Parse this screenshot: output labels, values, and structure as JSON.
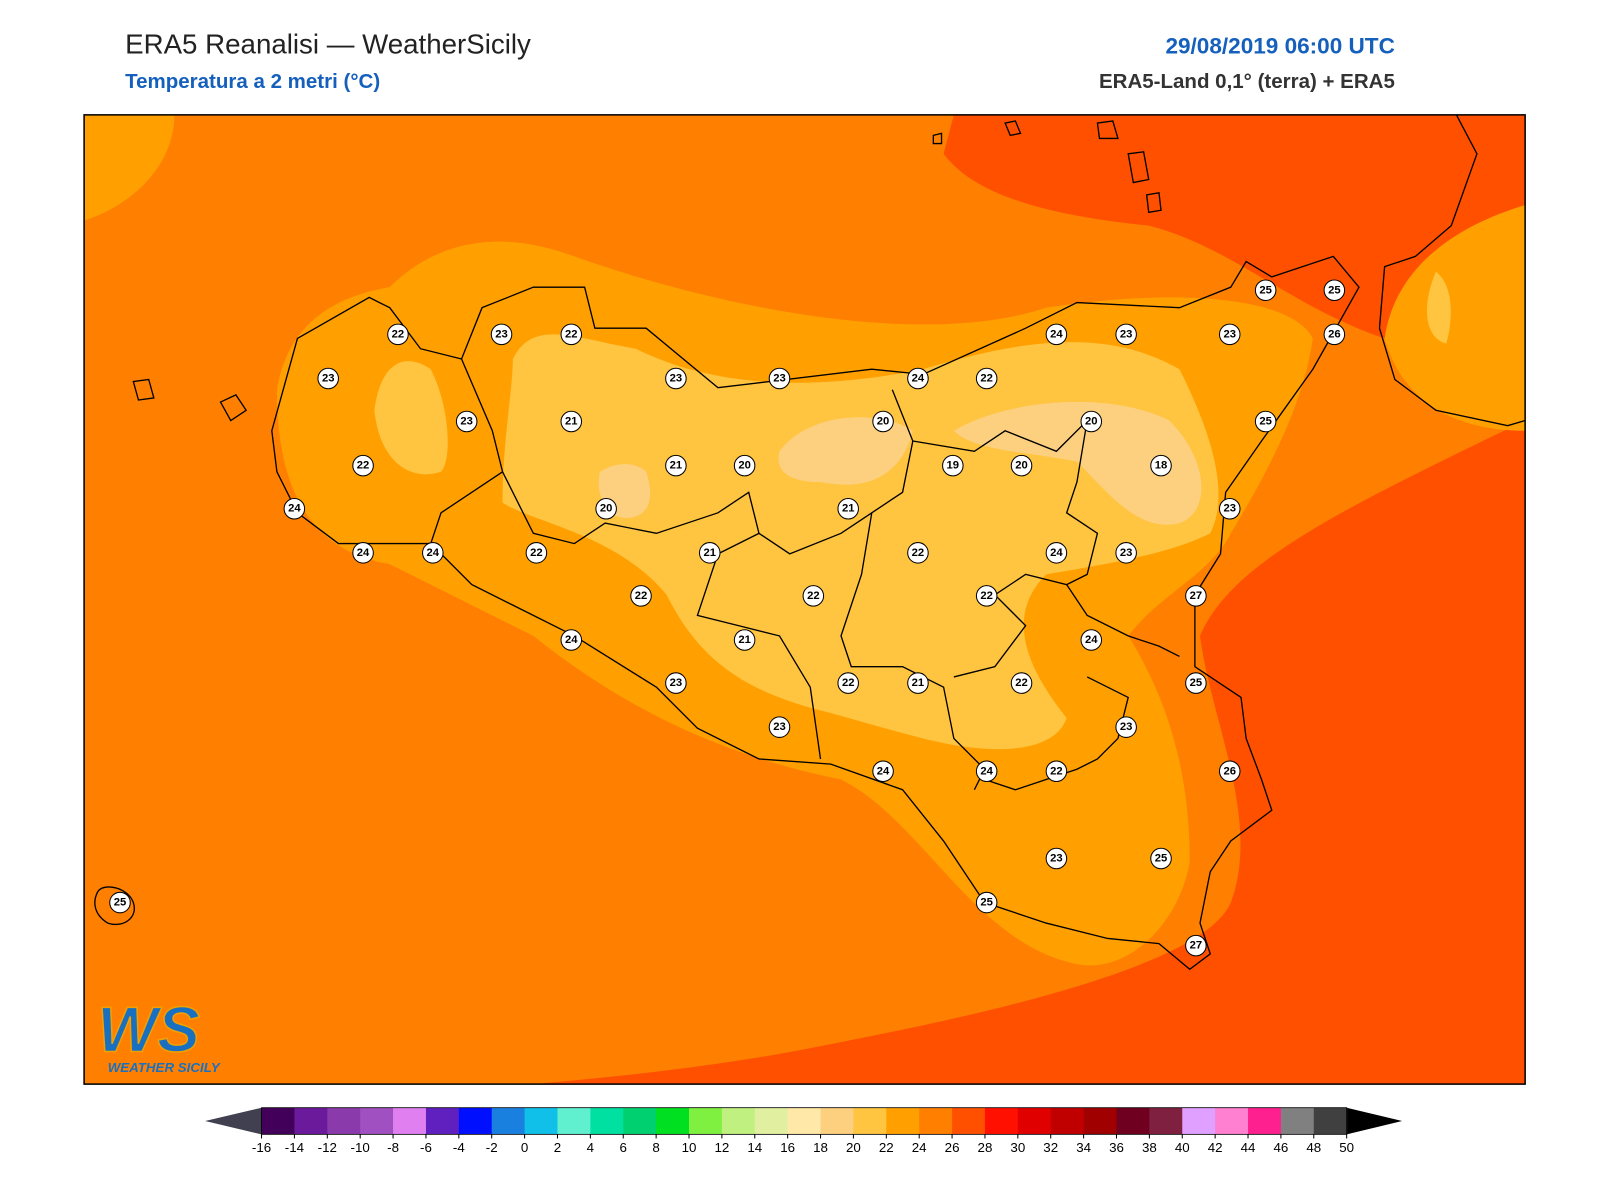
{
  "header": {
    "title": "ERA5 Reanalisi — WeatherSicily",
    "subtitle": "Temperatura a 2 metri (°C)",
    "date": "29/08/2019 06:00 UTC",
    "source": "ERA5-Land 0,1° (terra) + ERA5"
  },
  "logo": {
    "mark": "WS",
    "name": "WEATHER SICILY"
  },
  "stations": [
    22,
    23,
    22,
    23,
    23,
    21,
    22,
    24,
    20,
    21,
    20,
    23,
    23,
    24,
    22,
    20,
    19,
    20,
    20,
    18,
    24,
    23,
    23,
    25,
    25,
    26,
    25,
    23,
    23,
    24,
    27,
    21,
    22,
    22,
    24,
    24,
    22,
    21,
    22,
    22,
    24,
    21,
    24,
    23,
    22,
    21,
    22,
    25,
    23,
    23,
    24,
    24,
    22,
    26,
    23,
    25,
    25,
    27,
    25
  ],
  "colorbar": {
    "ticks": [
      -16,
      -14,
      -12,
      -10,
      -8,
      -6,
      -4,
      -2,
      0,
      2,
      4,
      6,
      8,
      10,
      12,
      14,
      16,
      18,
      20,
      22,
      24,
      26,
      28,
      30,
      32,
      34,
      36,
      38,
      40,
      42,
      44,
      46,
      48,
      50
    ],
    "colors": [
      "#42005a",
      "#6a1a9a",
      "#8a3aaa",
      "#a050c0",
      "#e080f0",
      "#6020c0",
      "#0010ff",
      "#1a80e0",
      "#10c0e8",
      "#60f0d0",
      "#00e0a0",
      "#00d070",
      "#00e020",
      "#80f040",
      "#c0f080",
      "#e0f0a0",
      "#ffe8a8",
      "#fdd080",
      "#ffc440",
      "#ffa000",
      "#ff8000",
      "#ff5000",
      "#ff1000",
      "#e00000",
      "#c00000",
      "#a00000",
      "#700020",
      "#802040",
      "#e0a0ff",
      "#ff80d0",
      "#ff2090",
      "#808080",
      "#404040"
    ],
    "under_color": "#404050",
    "over_color": "#000000"
  }
}
